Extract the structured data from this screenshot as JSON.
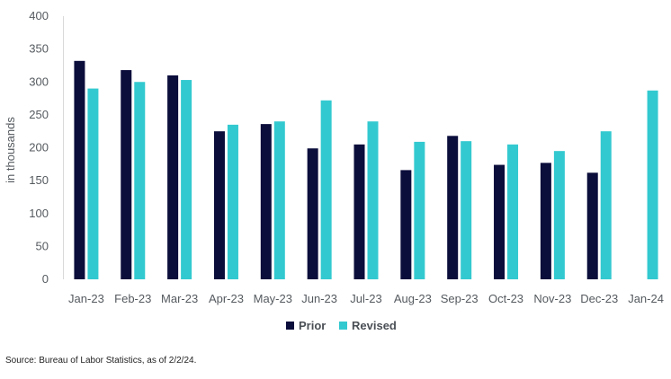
{
  "chart_data": {
    "type": "bar",
    "categories": [
      "Jan-23",
      "Feb-23",
      "Mar-23",
      "Apr-23",
      "May-23",
      "Jun-23",
      "Jul-23",
      "Aug-23",
      "Sep-23",
      "Oct-23",
      "Nov-23",
      "Dec-23",
      "Jan-24"
    ],
    "series": [
      {
        "name": "Prior",
        "color": "#0b0d3b",
        "values": [
          332,
          318,
          310,
          225,
          236,
          199,
          205,
          166,
          218,
          174,
          177,
          162,
          null
        ]
      },
      {
        "name": "Revised",
        "color": "#33c9d0",
        "values": [
          290,
          300,
          303,
          235,
          240,
          272,
          240,
          209,
          210,
          205,
          195,
          225,
          287
        ]
      }
    ],
    "title": "",
    "xlabel": "",
    "ylabel": "in thousands",
    "ylim": [
      0,
      400
    ],
    "yticks": [
      "0",
      "50",
      "100",
      "150",
      "200",
      "250",
      "300",
      "350",
      "400"
    ],
    "grid": false,
    "legend": "bottom-center"
  },
  "source_note": "Source: Bureau of Labor Statistics, as of 2/2/24."
}
